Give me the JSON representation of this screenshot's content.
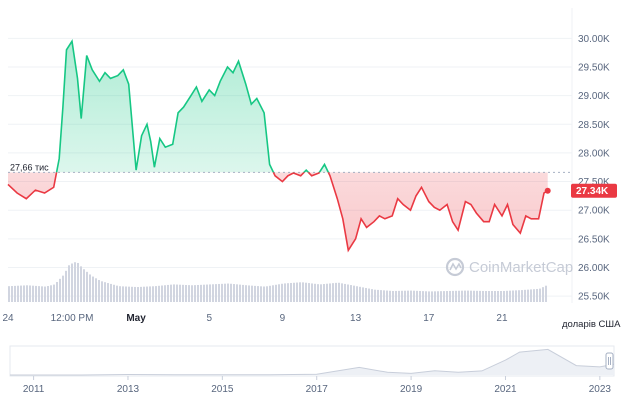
{
  "watermark": "CoinMarketCap",
  "colors": {
    "up": "#16c784",
    "down": "#ea3943",
    "volume": "#d1d5e0",
    "grid": "#eff2f5",
    "axis_text": "#58667e",
    "badge_bg": "#ea3943"
  },
  "chart_data": [
    {
      "type": "line",
      "title": "",
      "baseline": {
        "label": "27,66 тис",
        "value": 27660
      },
      "current": {
        "label": "27.34K",
        "value": 27340
      },
      "y_axis": {
        "unit_label": "доларів США",
        "ticks": [
          {
            "value": 30000,
            "label": "30.00K"
          },
          {
            "value": 29500,
            "label": "29.50K"
          },
          {
            "value": 29000,
            "label": "29.00K"
          },
          {
            "value": 28500,
            "label": "28.50K"
          },
          {
            "value": 28000,
            "label": "28.00K"
          },
          {
            "value": 27500,
            "label": "27.50K"
          },
          {
            "value": 27000,
            "label": "27.00K"
          },
          {
            "value": 26500,
            "label": "26.50K"
          },
          {
            "value": 26000,
            "label": "26.00K"
          },
          {
            "value": 25500,
            "label": "25.50K"
          }
        ],
        "ylim": [
          25380,
          30320
        ]
      },
      "x_axis": {
        "range": [
          0,
          30.5
        ],
        "ticks": [
          {
            "value": 0,
            "label": "24",
            "bold": false
          },
          {
            "value": 3.5,
            "label": "12:00 PM",
            "bold": false
          },
          {
            "value": 7,
            "label": "May",
            "bold": true
          },
          {
            "value": 11,
            "label": "5",
            "bold": false
          },
          {
            "value": 15,
            "label": "9",
            "bold": false
          },
          {
            "value": 19,
            "label": "13",
            "bold": false
          },
          {
            "value": 23,
            "label": "17",
            "bold": false
          },
          {
            "value": 27,
            "label": "21",
            "bold": false
          }
        ]
      },
      "series": [
        {
          "name": "",
          "x": [
            0.0,
            0.5,
            1.0,
            1.5,
            2.0,
            2.5,
            2.8,
            3.0,
            3.2,
            3.5,
            3.8,
            4.0,
            4.3,
            4.6,
            5.0,
            5.3,
            5.6,
            6.0,
            6.3,
            6.6,
            7.0,
            7.3,
            7.6,
            7.8,
            8.0,
            8.3,
            8.6,
            9.0,
            9.3,
            9.6,
            10.0,
            10.3,
            10.6,
            11.0,
            11.3,
            11.6,
            12.0,
            12.3,
            12.6,
            13.0,
            13.3,
            13.6,
            14.0,
            14.3,
            14.6,
            15.0,
            15.3,
            15.6,
            16.0,
            16.3,
            16.6,
            17.0,
            17.3,
            17.6,
            18.0,
            18.3,
            18.6,
            19.0,
            19.3,
            19.6,
            20.0,
            20.3,
            20.6,
            21.0,
            21.3,
            21.6,
            22.0,
            22.3,
            22.6,
            23.0,
            23.3,
            23.6,
            24.0,
            24.3,
            24.6,
            25.0,
            25.3,
            25.6,
            26.0,
            26.3,
            26.6,
            27.0,
            27.3,
            27.6,
            28.0,
            28.3,
            28.6,
            29.0,
            29.3,
            29.5
          ],
          "values": [
            27450,
            27300,
            27200,
            27350,
            27300,
            27400,
            27900,
            28800,
            29800,
            29950,
            29300,
            28600,
            29700,
            29450,
            29250,
            29400,
            29300,
            29350,
            29450,
            29200,
            27700,
            28300,
            28500,
            28200,
            27750,
            28250,
            28100,
            28150,
            28700,
            28800,
            29000,
            29150,
            28900,
            29100,
            29000,
            29250,
            29500,
            29400,
            29600,
            29200,
            28850,
            28950,
            28700,
            27800,
            27600,
            27500,
            27600,
            27650,
            27600,
            27700,
            27600,
            27650,
            27800,
            27600,
            27200,
            26850,
            26300,
            26500,
            26850,
            26700,
            26800,
            26900,
            26850,
            26900,
            27200,
            27100,
            27000,
            27250,
            27400,
            27150,
            27050,
            27000,
            27100,
            26800,
            26650,
            27150,
            27100,
            26950,
            26800,
            26800,
            27100,
            26900,
            27100,
            26750,
            26600,
            26900,
            26850,
            26850,
            27300,
            27340
          ]
        }
      ],
      "volume": {
        "x": [
          0.0,
          1.0,
          2.0,
          2.5,
          3.0,
          3.3,
          3.7,
          4.0,
          4.5,
          5.0,
          5.5,
          6.0,
          7.0,
          8.0,
          9.0,
          10.0,
          11.0,
          12.0,
          13.0,
          14.0,
          15.0,
          16.0,
          17.0,
          18.0,
          19.0,
          20.0,
          21.0,
          22.0,
          23.0,
          24.0,
          25.0,
          26.0,
          27.0,
          28.0,
          29.0,
          29.5
        ],
        "values": [
          0.36,
          0.38,
          0.35,
          0.4,
          0.62,
          0.85,
          0.92,
          0.78,
          0.6,
          0.48,
          0.42,
          0.36,
          0.34,
          0.36,
          0.4,
          0.38,
          0.4,
          0.42,
          0.38,
          0.35,
          0.42,
          0.45,
          0.4,
          0.44,
          0.36,
          0.28,
          0.25,
          0.26,
          0.24,
          0.25,
          0.26,
          0.25,
          0.25,
          0.27,
          0.3,
          0.4
        ]
      }
    },
    {
      "type": "area",
      "title": "",
      "x_axis": {
        "range": [
          2010.5,
          2023.3
        ],
        "ticks": [
          {
            "value": 2011,
            "label": "2011"
          },
          {
            "value": 2013,
            "label": "2013"
          },
          {
            "value": 2015,
            "label": "2015"
          },
          {
            "value": 2017,
            "label": "2017"
          },
          {
            "value": 2019,
            "label": "2019"
          },
          {
            "value": 2021,
            "label": "2021"
          },
          {
            "value": 2023,
            "label": "2023"
          }
        ]
      },
      "x": [
        2010.5,
        2012,
        2013,
        2014,
        2015,
        2016,
        2017,
        2017.9,
        2018.5,
        2019,
        2019.5,
        2020,
        2020.5,
        2021.0,
        2021.3,
        2021.9,
        2022.5,
        2023.0,
        2023.3
      ],
      "values": [
        0,
        0,
        0.02,
        0.01,
        0.01,
        0.01,
        0.03,
        0.28,
        0.1,
        0.06,
        0.16,
        0.1,
        0.15,
        0.55,
        0.85,
        0.95,
        0.35,
        0.3,
        0.4
      ]
    }
  ]
}
